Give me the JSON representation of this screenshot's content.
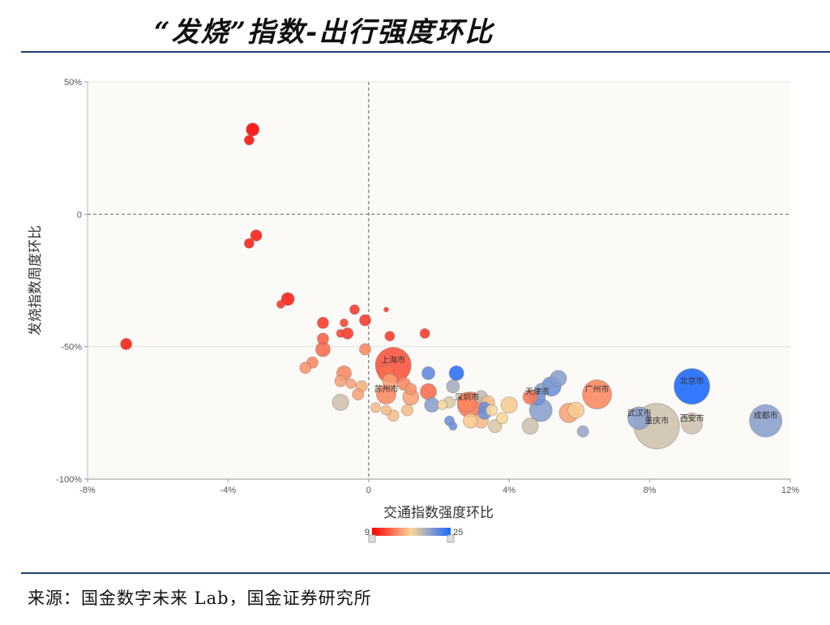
{
  "header": {
    "title": "“发烧”指数-出行强度环比"
  },
  "footer": {
    "source": "来源：国金数字未来 Lab，国金证券研究所"
  },
  "colors": {
    "rule": "#1f3f6b",
    "low": "#ff0000",
    "mid": "#f7d79a",
    "high": "#1a66ff"
  },
  "chart_data": {
    "type": "scatter",
    "xlabel": "交通指数强度环比",
    "ylabel": "发烧指数周度环比",
    "xlim": [
      -8,
      12
    ],
    "ylim": [
      -100,
      50
    ],
    "xticks": [
      "-8%",
      "-4%",
      "0",
      "4%",
      "8%",
      "12%"
    ],
    "yticks": [
      "50%",
      "0",
      "-50%",
      "-100%"
    ],
    "grid": true,
    "color_scale": {
      "min": 9,
      "max": 25,
      "min_label": "9",
      "max_label": "25"
    },
    "points": [
      {
        "x": -3.3,
        "y": 32,
        "size": 8,
        "c": 9
      },
      {
        "x": -3.4,
        "y": 28,
        "size": 6,
        "c": 9.5
      },
      {
        "x": -3.2,
        "y": -8,
        "size": 7,
        "c": 10
      },
      {
        "x": -3.4,
        "y": -11,
        "size": 6,
        "c": 10
      },
      {
        "x": -2.3,
        "y": -32,
        "size": 8,
        "c": 10
      },
      {
        "x": -2.5,
        "y": -34,
        "size": 5,
        "c": 11
      },
      {
        "x": -6.9,
        "y": -49,
        "size": 7,
        "c": 10
      },
      {
        "x": -0.4,
        "y": -36,
        "size": 6,
        "c": 11
      },
      {
        "x": -0.1,
        "y": -40,
        "size": 7,
        "c": 11
      },
      {
        "x": 0.5,
        "y": -36,
        "size": 3,
        "c": 11
      },
      {
        "x": -1.3,
        "y": -41,
        "size": 7,
        "c": 11
      },
      {
        "x": -0.7,
        "y": -41,
        "size": 5,
        "c": 11.5
      },
      {
        "x": -0.6,
        "y": -45,
        "size": 7,
        "c": 11
      },
      {
        "x": -0.8,
        "y": -45,
        "size": 5,
        "c": 11.5
      },
      {
        "x": 0.6,
        "y": -46,
        "size": 6,
        "c": 11
      },
      {
        "x": 1.6,
        "y": -45,
        "size": 6,
        "c": 11
      },
      {
        "x": -1.3,
        "y": -47,
        "size": 7,
        "c": 12.5
      },
      {
        "x": -1.3,
        "y": -51,
        "size": 9,
        "c": 13
      },
      {
        "x": -0.1,
        "y": -51,
        "size": 7,
        "c": 14
      },
      {
        "x": -1.6,
        "y": -56,
        "size": 7,
        "c": 14
      },
      {
        "x": -1.8,
        "y": -58,
        "size": 7,
        "c": 14.5
      },
      {
        "x": 0.7,
        "y": -57,
        "size": 22,
        "c": 12,
        "label": "上海市"
      },
      {
        "x": 0.5,
        "y": -60,
        "size": 10,
        "c": 13
      },
      {
        "x": 0.6,
        "y": -63,
        "size": 9,
        "c": 15
      },
      {
        "x": 0.5,
        "y": -68,
        "size": 12,
        "c": 14,
        "label": "苏州市"
      },
      {
        "x": 1.0,
        "y": -64,
        "size": 8,
        "c": 14
      },
      {
        "x": 1.2,
        "y": -66,
        "size": 7,
        "c": 14.5
      },
      {
        "x": 1.2,
        "y": -69,
        "size": 10,
        "c": 15
      },
      {
        "x": 1.7,
        "y": -67,
        "size": 10,
        "c": 13
      },
      {
        "x": -0.7,
        "y": -60,
        "size": 9,
        "c": 14
      },
      {
        "x": -0.8,
        "y": -63,
        "size": 7,
        "c": 15
      },
      {
        "x": -0.5,
        "y": -64,
        "size": 6,
        "c": 15
      },
      {
        "x": -0.2,
        "y": -65,
        "size": 7,
        "c": 15.5
      },
      {
        "x": -0.3,
        "y": -68,
        "size": 7,
        "c": 15
      },
      {
        "x": -0.8,
        "y": -71,
        "size": 10,
        "c": 18.5
      },
      {
        "x": 1.7,
        "y": -60,
        "size": 8,
        "c": 22.5
      },
      {
        "x": 2.5,
        "y": -60,
        "size": 9,
        "c": 24.5
      },
      {
        "x": 2.4,
        "y": -65,
        "size": 8,
        "c": 20
      },
      {
        "x": 1.8,
        "y": -72,
        "size": 9,
        "c": 21
      },
      {
        "x": 2.1,
        "y": -72,
        "size": 6,
        "c": 17
      },
      {
        "x": 2.3,
        "y": -71,
        "size": 7,
        "c": 18
      },
      {
        "x": 2.8,
        "y": -71,
        "size": 12,
        "c": 14,
        "label": "深圳市"
      },
      {
        "x": 2.9,
        "y": -72,
        "size": 16,
        "c": 13.5
      },
      {
        "x": 3.2,
        "y": -69,
        "size": 8,
        "c": 19
      },
      {
        "x": 3.3,
        "y": -73,
        "size": 7,
        "c": 22
      },
      {
        "x": 3.4,
        "y": -71,
        "size": 8,
        "c": 16
      },
      {
        "x": 3.5,
        "y": -74,
        "size": 7,
        "c": 17
      },
      {
        "x": 4.0,
        "y": -72,
        "size": 10,
        "c": 16.5
      },
      {
        "x": 3.3,
        "y": -75,
        "size": 8,
        "c": 22
      },
      {
        "x": 3.2,
        "y": -78,
        "size": 9,
        "c": 16
      },
      {
        "x": 2.9,
        "y": -78,
        "size": 9,
        "c": 16.5
      },
      {
        "x": 3.6,
        "y": -80,
        "size": 8,
        "c": 18
      },
      {
        "x": 3.8,
        "y": -77,
        "size": 7,
        "c": 17
      },
      {
        "x": 2.3,
        "y": -78,
        "size": 6,
        "c": 22
      },
      {
        "x": 2.4,
        "y": -80,
        "size": 5,
        "c": 22
      },
      {
        "x": 0.2,
        "y": -73,
        "size": 6,
        "c": 16
      },
      {
        "x": 0.5,
        "y": -74,
        "size": 6,
        "c": 16
      },
      {
        "x": 0.7,
        "y": -76,
        "size": 7,
        "c": 16
      },
      {
        "x": 1.1,
        "y": -74,
        "size": 7,
        "c": 16
      },
      {
        "x": 4.6,
        "y": -69,
        "size": 9,
        "c": 13.5
      },
      {
        "x": 4.8,
        "y": -69,
        "size": 10,
        "c": 22,
        "label": "天津市"
      },
      {
        "x": 4.9,
        "y": -74,
        "size": 14,
        "c": 21
      },
      {
        "x": 4.9,
        "y": -66,
        "size": 7,
        "c": 21
      },
      {
        "x": 5.2,
        "y": -65,
        "size": 12,
        "c": 22
      },
      {
        "x": 5.4,
        "y": -62,
        "size": 10,
        "c": 21
      },
      {
        "x": 4.6,
        "y": -80,
        "size": 10,
        "c": 18.5
      },
      {
        "x": 5.7,
        "y": -75,
        "size": 12,
        "c": 15
      },
      {
        "x": 5.9,
        "y": -74,
        "size": 10,
        "c": 16.5
      },
      {
        "x": 6.1,
        "y": -82,
        "size": 7,
        "c": 20.5
      },
      {
        "x": 6.5,
        "y": -68,
        "size": 18,
        "c": 14,
        "label": "广州市"
      },
      {
        "x": 7.7,
        "y": -77,
        "size": 14,
        "c": 21,
        "label": "武汉市"
      },
      {
        "x": 8.2,
        "y": -80,
        "size": 28,
        "c": 18.5,
        "label": "重庆市"
      },
      {
        "x": 9.2,
        "y": -65,
        "size": 22,
        "c": 25,
        "label": "北京市"
      },
      {
        "x": 9.2,
        "y": -79,
        "size": 13,
        "c": 18.5,
        "label": "西安市"
      },
      {
        "x": 11.3,
        "y": -78,
        "size": 20,
        "c": 21,
        "label": "成都市"
      }
    ]
  }
}
